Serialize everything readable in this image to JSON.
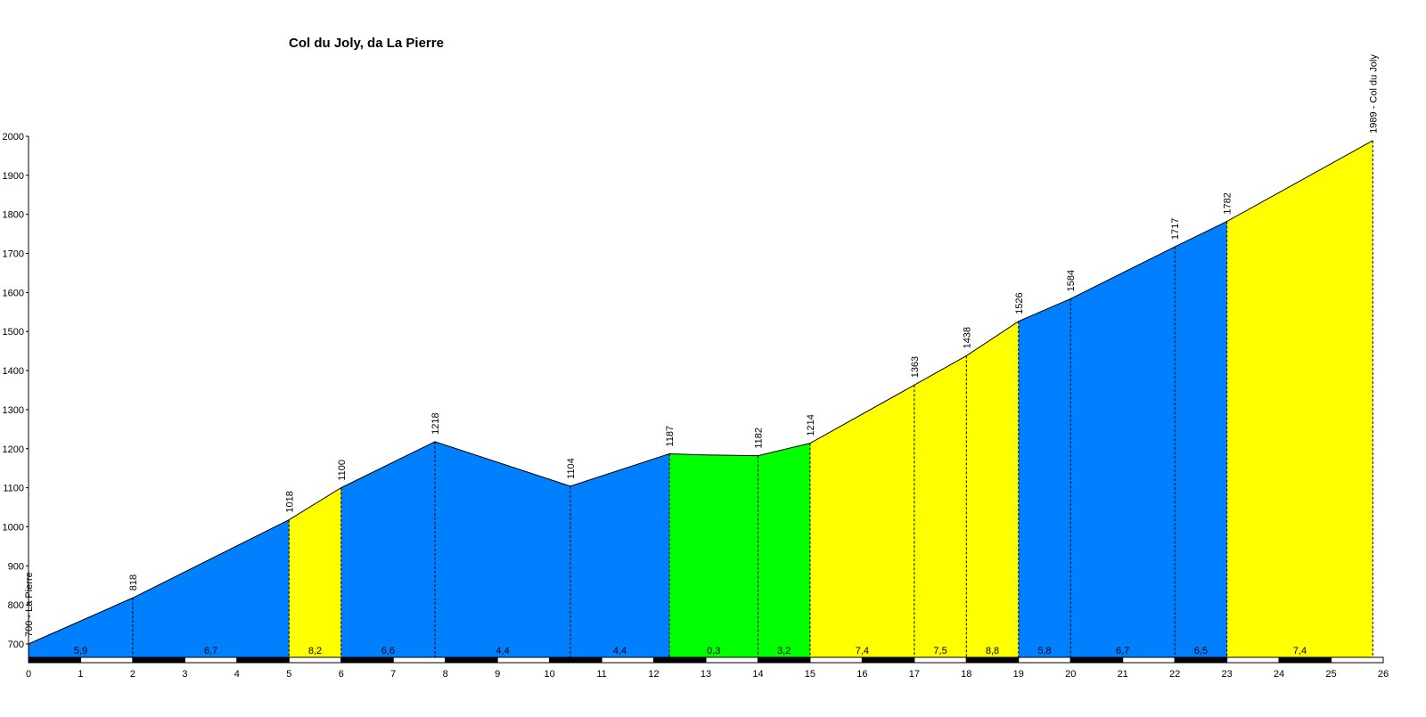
{
  "chart_data": {
    "type": "area",
    "title": "Col du Joly, da La Pierre",
    "xlabel": "",
    "ylabel": "",
    "xlim": [
      0,
      26
    ],
    "ylim": [
      650,
      2000
    ],
    "y_ticks": [
      700,
      800,
      900,
      1000,
      1100,
      1200,
      1300,
      1400,
      1500,
      1600,
      1700,
      1800,
      1900,
      2000
    ],
    "x_ticks": [
      0,
      1,
      2,
      3,
      4,
      5,
      6,
      7,
      8,
      9,
      10,
      11,
      12,
      13,
      14,
      15,
      16,
      17,
      18,
      19,
      20,
      21,
      22,
      23,
      24,
      25,
      26
    ],
    "profile": [
      {
        "x": 0,
        "y": 700
      },
      {
        "x": 2,
        "y": 818
      },
      {
        "x": 5,
        "y": 1018
      },
      {
        "x": 6,
        "y": 1100
      },
      {
        "x": 7.8,
        "y": 1218
      },
      {
        "x": 10.4,
        "y": 1104
      },
      {
        "x": 12.3,
        "y": 1187
      },
      {
        "x": 13,
        "y": 1184
      },
      {
        "x": 14,
        "y": 1182
      },
      {
        "x": 15,
        "y": 1214
      },
      {
        "x": 17,
        "y": 1363
      },
      {
        "x": 18,
        "y": 1438
      },
      {
        "x": 19,
        "y": 1526
      },
      {
        "x": 20,
        "y": 1584
      },
      {
        "x": 22,
        "y": 1717
      },
      {
        "x": 23,
        "y": 1782
      },
      {
        "x": 25.8,
        "y": 1989
      }
    ],
    "segments": [
      {
        "from": 0,
        "to": 5,
        "gradient": "5,9",
        "gradient_mid": 2,
        "gradient2": "6,7",
        "color": "#0080FF"
      },
      {
        "from": 5,
        "to": 6,
        "gradient": "8,2",
        "color": "#FFFF00"
      },
      {
        "from": 6,
        "to": 10.4,
        "gradient": "6,6",
        "gradient2": "4,4",
        "gradient_mid": 7.8,
        "color": "#0080FF"
      },
      {
        "from": 10.4,
        "to": 12.3,
        "gradient": "4,4",
        "color": "#0080FF"
      },
      {
        "from": 12.3,
        "to": 15,
        "gradient": "0,3",
        "gradient_mid": 14,
        "gradient2": "3,2",
        "color": "#00FF00"
      },
      {
        "from": 15,
        "to": 19,
        "gradient": "7,4",
        "gradient_mid": 17,
        "gradient2": "7,5",
        "gradient_mid2": 18,
        "gradient3": "8,8",
        "color": "#FFFF00"
      },
      {
        "from": 19,
        "to": 23,
        "gradient": "5,8",
        "gradient_mid": 20,
        "gradient2": "6,7",
        "gradient_mid2": 22,
        "gradient3": "6,5",
        "color": "#0080FF"
      },
      {
        "from": 23,
        "to": 25.8,
        "gradient": "7,4",
        "color": "#FFFF00"
      }
    ],
    "gradient_labels": [
      {
        "x": 1,
        "text": "5,9"
      },
      {
        "x": 3.5,
        "text": "6,7"
      },
      {
        "x": 5.5,
        "text": "8,2"
      },
      {
        "x": 6.9,
        "text": "6,6"
      },
      {
        "x": 9.1,
        "text": "4,4"
      },
      {
        "x": 11.35,
        "text": "4,4"
      },
      {
        "x": 13.15,
        "text": "0,3"
      },
      {
        "x": 14.5,
        "text": "3,2"
      },
      {
        "x": 16,
        "text": "7,4"
      },
      {
        "x": 17.5,
        "text": "7,5"
      },
      {
        "x": 18.5,
        "text": "8,8"
      },
      {
        "x": 19.5,
        "text": "5,8"
      },
      {
        "x": 21,
        "text": "6,7"
      },
      {
        "x": 22.5,
        "text": "6,5"
      },
      {
        "x": 24.4,
        "text": "7,4"
      }
    ],
    "point_labels": [
      {
        "x": 0,
        "y": 700,
        "text": "700 - La Pierre"
      },
      {
        "x": 2,
        "y": 818,
        "text": "818"
      },
      {
        "x": 5,
        "y": 1018,
        "text": "1018"
      },
      {
        "x": 6,
        "y": 1100,
        "text": "1100"
      },
      {
        "x": 7.8,
        "y": 1218,
        "text": "1218"
      },
      {
        "x": 10.4,
        "y": 1104,
        "text": "1104"
      },
      {
        "x": 12.3,
        "y": 1187,
        "text": "1187"
      },
      {
        "x": 14,
        "y": 1182,
        "text": "1182"
      },
      {
        "x": 15,
        "y": 1214,
        "text": "1214"
      },
      {
        "x": 17,
        "y": 1363,
        "text": "1363"
      },
      {
        "x": 18,
        "y": 1438,
        "text": "1438"
      },
      {
        "x": 19,
        "y": 1526,
        "text": "1526"
      },
      {
        "x": 20,
        "y": 1584,
        "text": "1584"
      },
      {
        "x": 22,
        "y": 1717,
        "text": "1717"
      },
      {
        "x": 23,
        "y": 1782,
        "text": "1782"
      },
      {
        "x": 25.8,
        "y": 1989,
        "text": "1989 - Col du Joly"
      }
    ],
    "colors": {
      "blue": "#0080FF",
      "yellow": "#FFFF00",
      "green": "#00FF00",
      "axis": "#000000"
    }
  }
}
